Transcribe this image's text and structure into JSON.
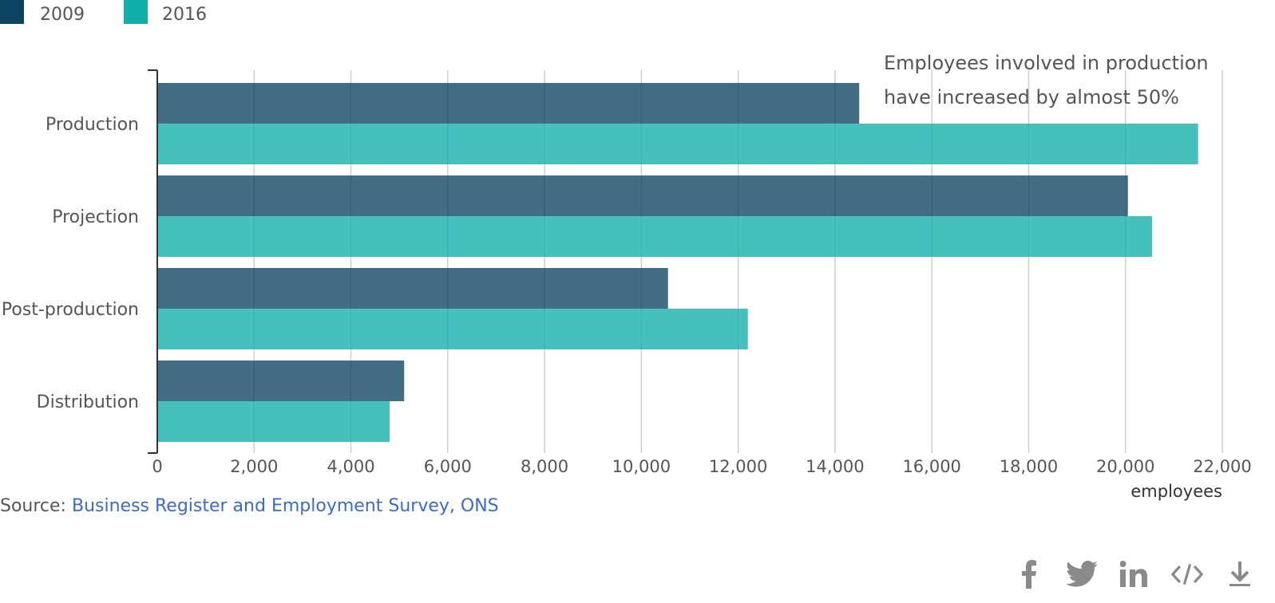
{
  "legend": [
    {
      "label": "2009",
      "color": "#0d4461"
    },
    {
      "label": "2016",
      "color": "#12aeab"
    }
  ],
  "chart_data": {
    "type": "bar",
    "orientation": "horizontal",
    "categories": [
      "Production",
      "Projection",
      "Post-production",
      "Distribution"
    ],
    "series": [
      {
        "name": "2009",
        "values": [
          14500,
          20050,
          10550,
          5100
        ],
        "color": "#0d4461"
      },
      {
        "name": "2016",
        "values": [
          21500,
          20550,
          12200,
          4800
        ],
        "color": "#12aeab"
      }
    ],
    "xlim": [
      0,
      22000
    ],
    "xticks": [
      0,
      2000,
      4000,
      6000,
      8000,
      10000,
      12000,
      14000,
      16000,
      18000,
      20000,
      22000
    ],
    "xtick_labels": [
      "0",
      "2,000",
      "4,000",
      "6,000",
      "8,000",
      "10,000",
      "12,000",
      "14,000",
      "16,000",
      "18,000",
      "20,000",
      "22,000"
    ],
    "xlabel": "employees",
    "grid": true,
    "legend_position": "top-left",
    "annotation": [
      "Employees involved in production",
      "have increased by almost 50%"
    ]
  },
  "source": {
    "prefix": "Source:",
    "link_text": "Business Register and Employment Survey, ONS"
  },
  "share_icons": [
    "facebook-icon",
    "twitter-icon",
    "linkedin-icon",
    "embed-code-icon",
    "download-icon"
  ]
}
